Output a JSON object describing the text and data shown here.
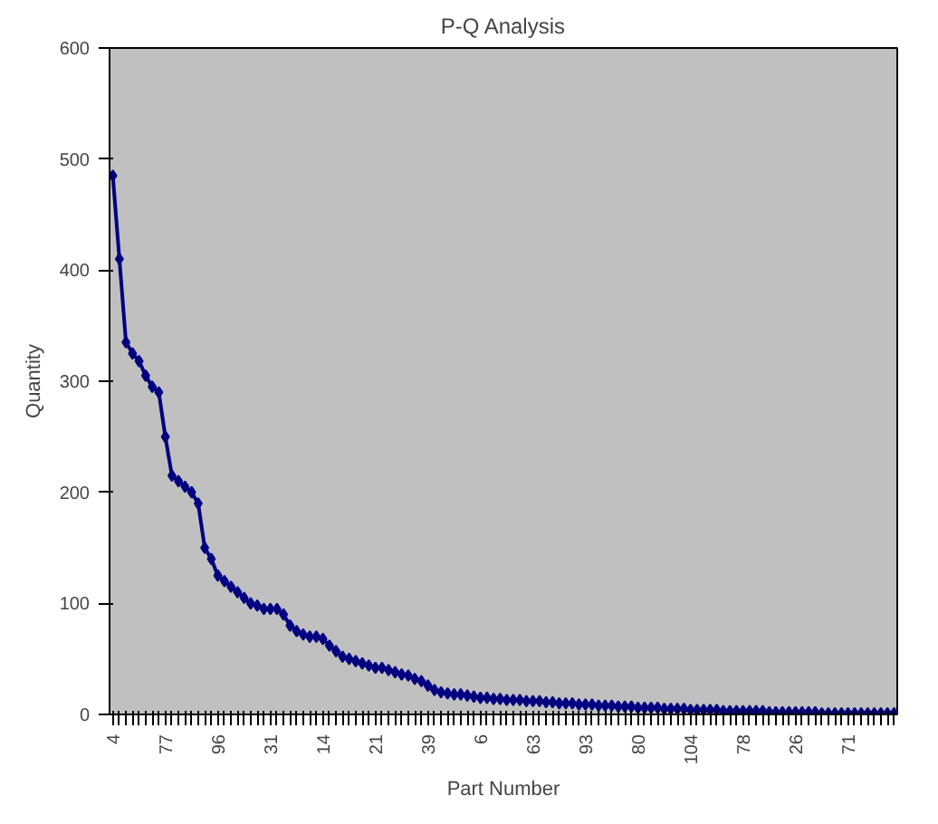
{
  "chart_data": {
    "type": "line",
    "title": "P-Q Analysis",
    "xlabel": "Part Number",
    "ylabel": "Quantity",
    "categories": [
      "4",
      null,
      null,
      null,
      null,
      null,
      null,
      null,
      "77",
      null,
      null,
      null,
      null,
      null,
      null,
      null,
      "96",
      null,
      null,
      null,
      null,
      null,
      null,
      null,
      "31",
      null,
      null,
      null,
      null,
      null,
      null,
      null,
      "14",
      null,
      null,
      null,
      null,
      null,
      null,
      null,
      "21",
      null,
      null,
      null,
      null,
      null,
      null,
      null,
      "39",
      null,
      null,
      null,
      null,
      null,
      null,
      null,
      "6",
      null,
      null,
      null,
      null,
      null,
      null,
      null,
      "63",
      null,
      null,
      null,
      null,
      null,
      null,
      null,
      "93",
      null,
      null,
      null,
      null,
      null,
      null,
      null,
      "80",
      null,
      null,
      null,
      null,
      null,
      null,
      null,
      "104",
      null,
      null,
      null,
      null,
      null,
      null,
      null,
      "78",
      null,
      null,
      null,
      null,
      null,
      null,
      null,
      "26",
      null,
      null,
      null,
      null,
      null,
      null,
      null,
      "71",
      null,
      null,
      null,
      null,
      null,
      null,
      null
    ],
    "series": [
      {
        "color": "#000080",
        "values": [
          485,
          410,
          335,
          325,
          318,
          305,
          295,
          290,
          250,
          215,
          210,
          205,
          200,
          190,
          150,
          140,
          125,
          120,
          115,
          110,
          105,
          100,
          98,
          95,
          95,
          95,
          90,
          80,
          75,
          72,
          70,
          70,
          68,
          62,
          57,
          52,
          50,
          48,
          46,
          44,
          42,
          42,
          40,
          38,
          36,
          35,
          32,
          30,
          26,
          22,
          20,
          19,
          18,
          18,
          17,
          16,
          15,
          15,
          14,
          14,
          13,
          13,
          13,
          12,
          12,
          12,
          11,
          11,
          10,
          10,
          10,
          9,
          9,
          9,
          8,
          8,
          8,
          7,
          7,
          7,
          6,
          6,
          6,
          6,
          5,
          5,
          5,
          5,
          4,
          4,
          4,
          4,
          4,
          3,
          3,
          3,
          3,
          3,
          3,
          3,
          2,
          2,
          2,
          2,
          2,
          2,
          2,
          2,
          1,
          1,
          1,
          1,
          1,
          1,
          1,
          1,
          1,
          1,
          1,
          1
        ]
      }
    ],
    "ylim": [
      0,
      600
    ],
    "yticks": [
      0,
      100,
      200,
      300,
      400,
      500,
      600
    ],
    "grid": false,
    "marker": "diamond",
    "line_style": "solid"
  }
}
